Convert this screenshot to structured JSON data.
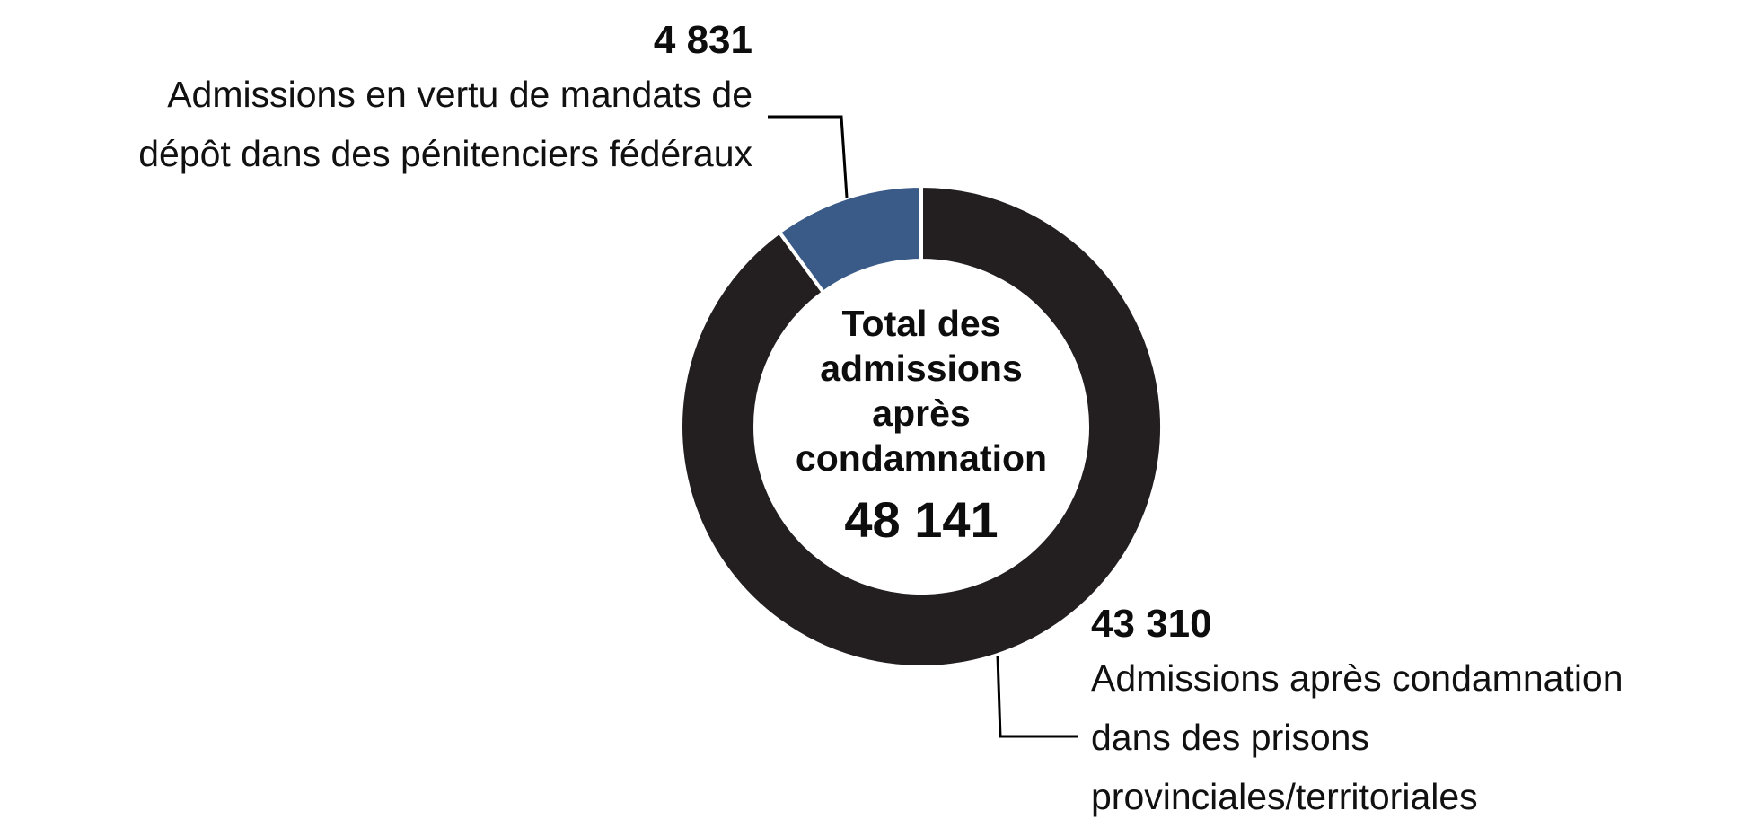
{
  "chart_data": {
    "type": "pie",
    "donut": true,
    "slices": [
      {
        "value": 43310,
        "value_label": "43 310",
        "label_lines": [
          "Admissions après condamnation",
          "dans des prisons",
          "provinciales/territoriales"
        ],
        "color": "#231f20"
      },
      {
        "value": 4831,
        "value_label": "4 831",
        "label_lines": [
          "Admissions en vertu de mandats de",
          "dépôt dans des pénitenciers fédéraux"
        ],
        "color": "#3a5b88"
      }
    ],
    "center": {
      "title_lines": [
        "Total des",
        "admissions",
        "après",
        "condamnation"
      ],
      "total_label": "48 141"
    }
  }
}
